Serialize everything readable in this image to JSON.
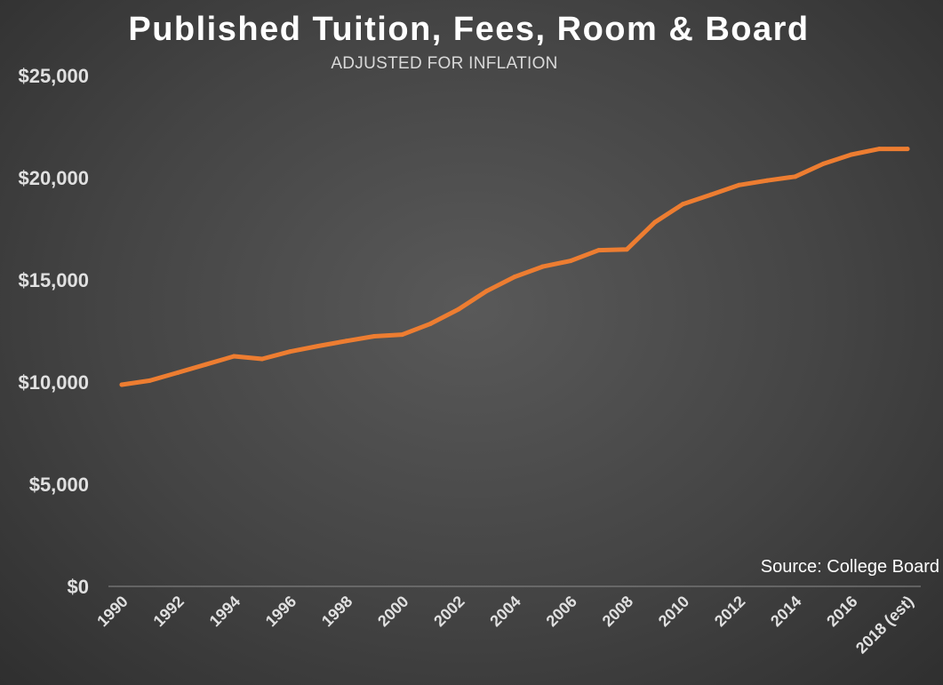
{
  "chart_data": {
    "type": "line",
    "title": "Published Tuition, Fees, Room & Board",
    "subtitle": "ADJUSTED FOR INFLATION",
    "source": "Source: College Board",
    "xlabel": "",
    "ylabel": "",
    "ylim": [
      0,
      25000
    ],
    "grid": false,
    "y_ticks": [
      {
        "value": 0,
        "label": "$0"
      },
      {
        "value": 5000,
        "label": "$5,000"
      },
      {
        "value": 10000,
        "label": "$10,000"
      },
      {
        "value": 15000,
        "label": "$15,000"
      },
      {
        "value": 20000,
        "label": "$20,000"
      },
      {
        "value": 25000,
        "label": "$25,000"
      }
    ],
    "x": [
      "1990",
      "1991",
      "1992",
      "1993",
      "1994",
      "1995",
      "1996",
      "1997",
      "1998",
      "1999",
      "2000",
      "2001",
      "2002",
      "2003",
      "2004",
      "2005",
      "2006",
      "2007",
      "2008",
      "2009",
      "2010",
      "2011",
      "2012",
      "2013",
      "2014",
      "2015",
      "2016",
      "2017",
      "2018 (est)"
    ],
    "x_tick_labels": [
      "1990",
      "1992",
      "1994",
      "1996",
      "1998",
      "2000",
      "2002",
      "2004",
      "2006",
      "2008",
      "2010",
      "2012",
      "2014",
      "2016",
      "2018 (est)"
    ],
    "series": [
      {
        "color": "#ed7d31",
        "values": [
          9870,
          10070,
          10460,
          10860,
          11260,
          11130,
          11490,
          11760,
          12010,
          12240,
          12320,
          12850,
          13560,
          14450,
          15150,
          15650,
          15930,
          16450,
          16490,
          17820,
          18710,
          19170,
          19640,
          19860,
          20050,
          20680,
          21130,
          21410,
          21410
        ]
      }
    ]
  }
}
